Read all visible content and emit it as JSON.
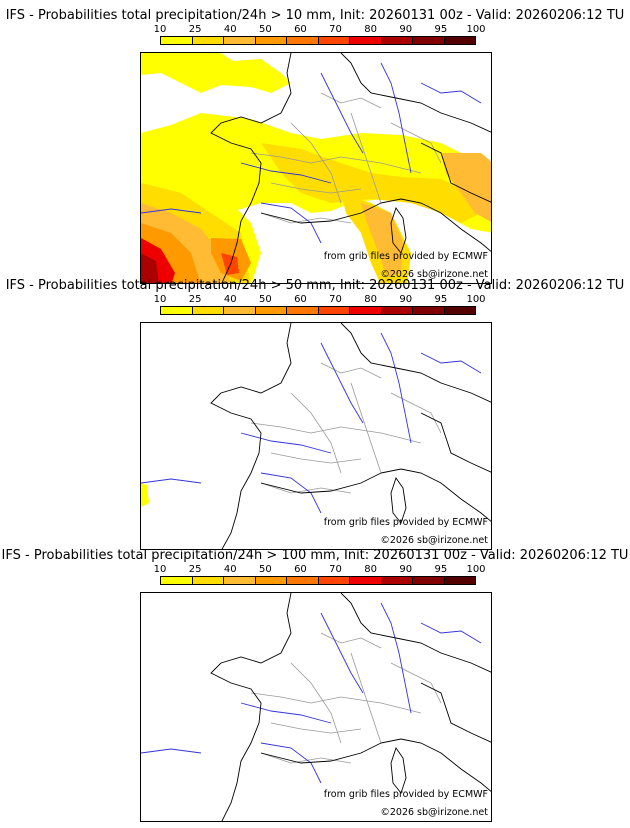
{
  "colorbar": {
    "ticks": [
      "10",
      "25",
      "40",
      "50",
      "60",
      "70",
      "80",
      "90",
      "95",
      "100"
    ],
    "colors": [
      "#ffff00",
      "#ffdd00",
      "#ffbb33",
      "#ff9900",
      "#ff7700",
      "#ff4400",
      "#ee0000",
      "#aa0000",
      "#800000",
      "#550000"
    ]
  },
  "panels": [
    {
      "title": "IFS - Probabilities total precipitation/24h > 10 mm, Init: 20260131 00z - Valid: 20260206:12 TU"
    },
    {
      "title": "IFS - Probabilities total precipitation/24h > 50 mm, Init: 20260131 00z - Valid: 20260206:12 TU"
    },
    {
      "title": "IFS - Probabilities total precipitation/24h > 100 mm, Init: 20260131 00z - Valid: 20260206:12 TU"
    }
  ],
  "credits": {
    "source": "from grib files provided by ECMWF",
    "copyright": "©2026 sb@irizone.net"
  },
  "map_colors": {
    "borders": "#000000",
    "rivers": "#3333dd",
    "regions": "#999999"
  }
}
